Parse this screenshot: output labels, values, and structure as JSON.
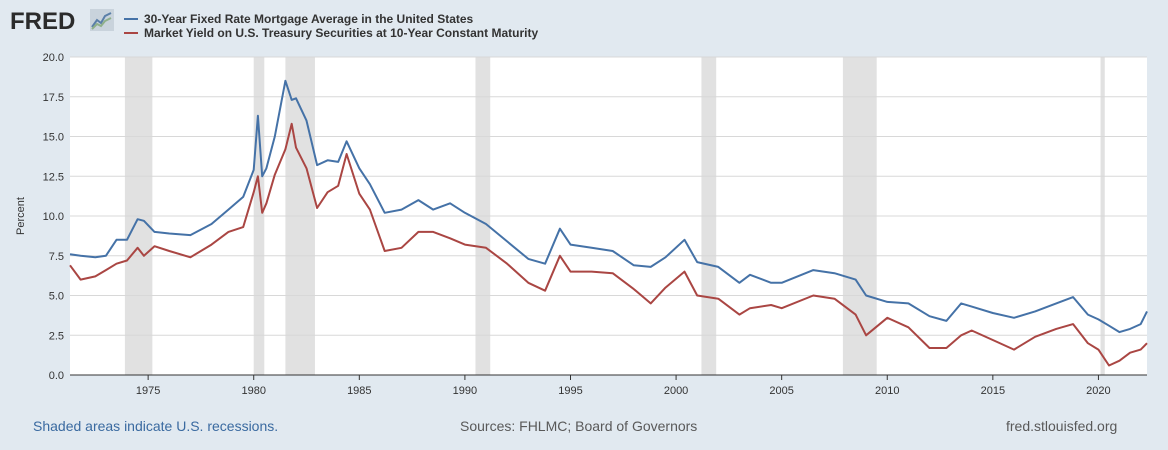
{
  "brand": {
    "logo_text": "FRED"
  },
  "footer": {
    "recession_note": "Shaded areas indicate U.S. recessions.",
    "sources": "Sources: FHLMC; Board of Governors",
    "site": "fred.stlouisfed.org"
  },
  "colors": {
    "mortgage": "#4572a7",
    "treasury": "#aa4643",
    "recession": "#e1e1e1",
    "background": "#e1e9f0"
  },
  "chart_data": {
    "type": "line",
    "title": "",
    "xlabel": "",
    "ylabel": "Percent",
    "xlim": [
      1971.3,
      2022.3
    ],
    "ylim": [
      0,
      20
    ],
    "yticks": [
      "0.0",
      "2.5",
      "5.0",
      "7.5",
      "10.0",
      "12.5",
      "15.0",
      "17.5",
      "20.0"
    ],
    "xticks": [
      "1975",
      "1980",
      "1985",
      "1990",
      "1995",
      "2000",
      "2005",
      "2010",
      "2015",
      "2020"
    ],
    "grid": true,
    "legend_position": "top-left",
    "recessions": [
      [
        1973.9,
        1975.2
      ],
      [
        1980.0,
        1980.5
      ],
      [
        1981.5,
        1982.9
      ],
      [
        1990.5,
        1991.2
      ],
      [
        2001.2,
        2001.9
      ],
      [
        2007.9,
        2009.5
      ],
      [
        2020.1,
        2020.3
      ]
    ],
    "series": [
      {
        "name": "30-Year Fixed Rate Mortgage Average in the United States",
        "color": "#4572a7",
        "x": [
          1971.3,
          1971.8,
          1972.5,
          1973.0,
          1973.5,
          1974.0,
          1974.5,
          1974.8,
          1975.3,
          1976.0,
          1977.0,
          1978.0,
          1978.8,
          1979.5,
          1980.0,
          1980.2,
          1980.4,
          1980.6,
          1981.0,
          1981.5,
          1981.8,
          1982.0,
          1982.5,
          1983.0,
          1983.5,
          1984.0,
          1984.4,
          1985.0,
          1985.5,
          1986.2,
          1987.0,
          1987.8,
          1988.5,
          1989.3,
          1990.0,
          1991.0,
          1992.0,
          1993.0,
          1993.8,
          1994.5,
          1995.0,
          1996.0,
          1997.0,
          1998.0,
          1998.8,
          1999.5,
          2000.4,
          2001.0,
          2002.0,
          2003.0,
          2003.5,
          2004.5,
          2005.0,
          2006.5,
          2007.5,
          2008.5,
          2009.0,
          2010.0,
          2011.0,
          2012.0,
          2012.8,
          2013.5,
          2014.0,
          2015.0,
          2016.0,
          2017.0,
          2018.0,
          2018.8,
          2019.5,
          2020.0,
          2020.5,
          2021.0,
          2021.5,
          2022.0,
          2022.3
        ],
        "values": [
          7.6,
          7.5,
          7.4,
          7.5,
          8.5,
          8.5,
          9.8,
          9.7,
          9.0,
          8.9,
          8.8,
          9.5,
          10.4,
          11.2,
          12.9,
          16.3,
          12.5,
          13.0,
          15.0,
          18.5,
          17.3,
          17.4,
          16.0,
          13.2,
          13.5,
          13.4,
          14.7,
          13.0,
          12.0,
          10.2,
          10.4,
          11.0,
          10.4,
          10.8,
          10.2,
          9.5,
          8.4,
          7.3,
          7.0,
          9.2,
          8.2,
          8.0,
          7.8,
          6.9,
          6.8,
          7.4,
          8.5,
          7.1,
          6.8,
          5.8,
          6.3,
          5.8,
          5.8,
          6.6,
          6.4,
          6.0,
          5.0,
          4.6,
          4.5,
          3.7,
          3.4,
          4.5,
          4.3,
          3.9,
          3.6,
          4.0,
          4.5,
          4.9,
          3.8,
          3.5,
          3.1,
          2.7,
          2.9,
          3.2,
          4.0
        ]
      },
      {
        "name": "Market Yield on U.S. Treasury Securities at 10-Year Constant Maturity",
        "color": "#aa4643",
        "x": [
          1971.3,
          1971.8,
          1972.5,
          1973.0,
          1973.5,
          1974.0,
          1974.5,
          1974.8,
          1975.3,
          1976.0,
          1977.0,
          1978.0,
          1978.8,
          1979.5,
          1980.0,
          1980.2,
          1980.4,
          1980.6,
          1981.0,
          1981.5,
          1981.8,
          1982.0,
          1982.5,
          1983.0,
          1983.5,
          1984.0,
          1984.4,
          1985.0,
          1985.5,
          1986.2,
          1987.0,
          1987.8,
          1988.5,
          1989.3,
          1990.0,
          1991.0,
          1992.0,
          1993.0,
          1993.8,
          1994.5,
          1995.0,
          1996.0,
          1997.0,
          1998.0,
          1998.8,
          1999.5,
          2000.4,
          2001.0,
          2002.0,
          2003.0,
          2003.5,
          2004.5,
          2005.0,
          2006.5,
          2007.5,
          2008.5,
          2009.0,
          2010.0,
          2011.0,
          2012.0,
          2012.8,
          2013.5,
          2014.0,
          2015.0,
          2016.0,
          2017.0,
          2018.0,
          2018.8,
          2019.5,
          2020.0,
          2020.5,
          2021.0,
          2021.5,
          2022.0,
          2022.3
        ],
        "values": [
          6.9,
          6.0,
          6.2,
          6.6,
          7.0,
          7.2,
          8.0,
          7.5,
          8.1,
          7.8,
          7.4,
          8.2,
          9.0,
          9.3,
          11.5,
          12.5,
          10.2,
          10.8,
          12.6,
          14.2,
          15.8,
          14.3,
          13.0,
          10.5,
          11.5,
          11.9,
          13.9,
          11.4,
          10.4,
          7.8,
          8.0,
          9.0,
          9.0,
          8.6,
          8.2,
          8.0,
          7.0,
          5.8,
          5.3,
          7.5,
          6.5,
          6.5,
          6.4,
          5.4,
          4.5,
          5.5,
          6.5,
          5.0,
          4.8,
          3.8,
          4.2,
          4.4,
          4.2,
          5.0,
          4.8,
          3.8,
          2.5,
          3.6,
          3.0,
          1.7,
          1.7,
          2.5,
          2.8,
          2.2,
          1.6,
          2.4,
          2.9,
          3.2,
          2.0,
          1.6,
          0.6,
          0.9,
          1.4,
          1.6,
          2.0
        ]
      }
    ]
  }
}
